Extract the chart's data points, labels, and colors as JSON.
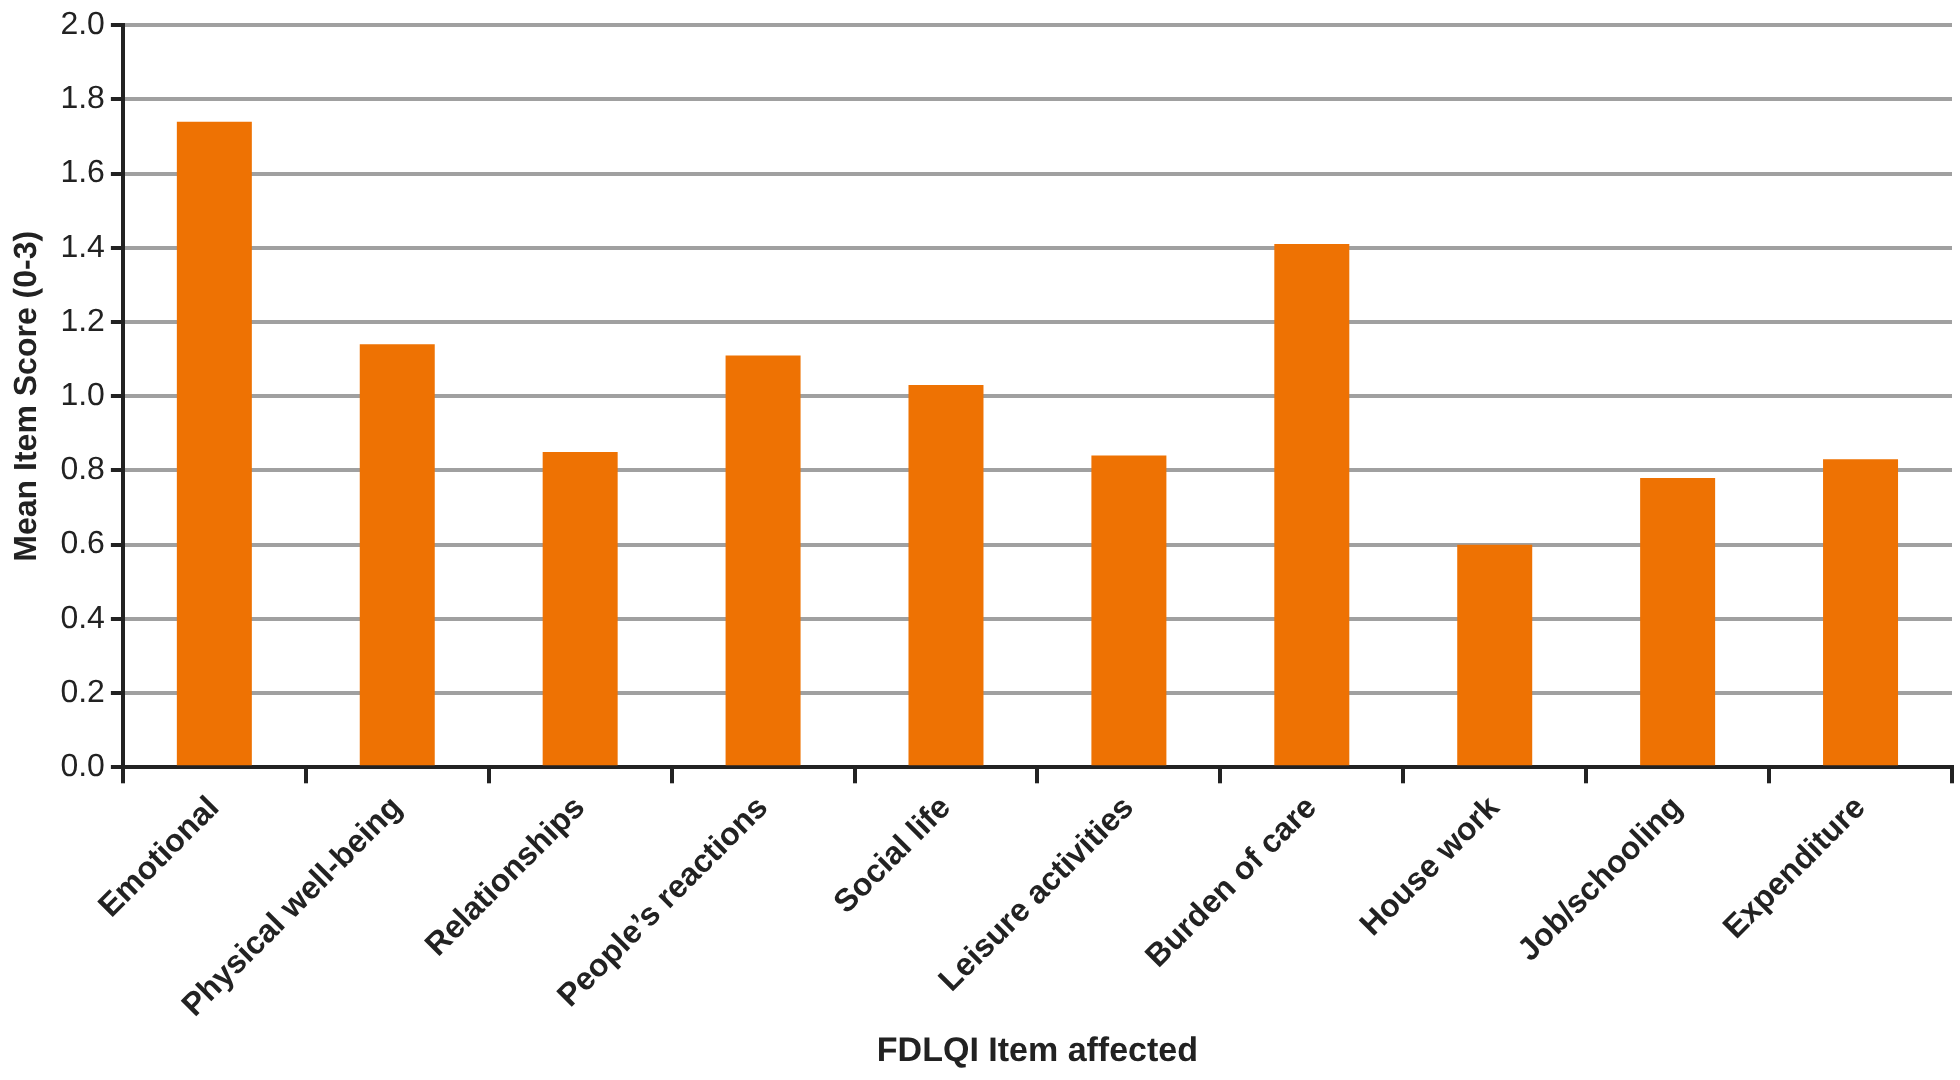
{
  "chart_data": {
    "type": "bar",
    "xlabel": "FDLQI Item affected",
    "ylabel": "Mean Item Score (0-3)",
    "categories": [
      "Emotional",
      "Physical well-being",
      "Relationships",
      "People’s reactions",
      "Social life",
      "Leisure activities",
      "Burden of care",
      "House work",
      "Job/schooling",
      "Expenditure"
    ],
    "values": [
      1.74,
      1.14,
      0.85,
      1.11,
      1.03,
      0.84,
      1.41,
      0.6,
      0.78,
      0.83
    ],
    "color": "#ee7203",
    "ylim": [
      0,
      2
    ],
    "yticks": [
      {
        "value": 0,
        "label": "0.0"
      },
      {
        "value": 0.2,
        "label": "0.2"
      },
      {
        "value": 0.4,
        "label": "0.4"
      },
      {
        "value": 0.6,
        "label": "0.6"
      },
      {
        "value": 0.8,
        "label": "0.8"
      },
      {
        "value": 1,
        "label": "1.0"
      },
      {
        "value": 1.2,
        "label": "1.2"
      },
      {
        "value": 1.4,
        "label": "1.4"
      },
      {
        "value": 1.6,
        "label": "1.6"
      },
      {
        "value": 1.8,
        "label": "1.8"
      },
      {
        "value": 2,
        "label": "2.0"
      }
    ],
    "grid": "y",
    "legend": false
  }
}
